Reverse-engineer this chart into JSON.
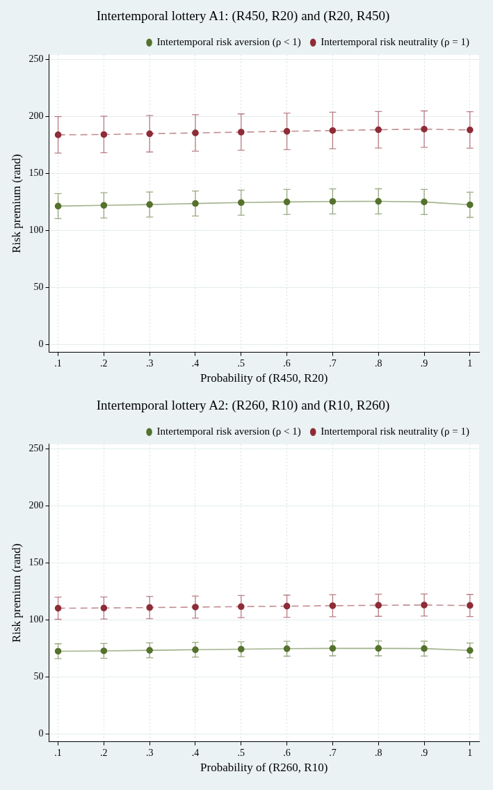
{
  "chart_data": [
    {
      "type": "line",
      "title": "Intertemporal lottery A1: (R450, R20) and (R20, R450)",
      "xlabel": "Probability of (R450, R20)",
      "ylabel": "Risk premium (rand)",
      "x": [
        0.1,
        0.2,
        0.3,
        0.4,
        0.5,
        0.6,
        0.7,
        0.8,
        0.9,
        1
      ],
      "series": [
        {
          "name": "Intertemporal risk aversion (ρ < 1)",
          "color": "#55722d",
          "line_style": "solid",
          "values": [
            121.3,
            122,
            122.7,
            123.6,
            124.4,
            125,
            125.4,
            125.5,
            125,
            122.5
          ],
          "errors": [
            11,
            11,
            11,
            11,
            11,
            11,
            11,
            11,
            11,
            11
          ]
        },
        {
          "name": "Intertemporal risk neutrality (ρ = 1)",
          "color": "#8e2c37",
          "line_style": "dashed",
          "values": [
            183.8,
            184.1,
            184.8,
            185.5,
            186.2,
            186.9,
            187.6,
            188.3,
            188.8,
            188.1
          ],
          "errors": [
            16,
            16,
            16,
            16,
            16,
            16,
            16,
            16,
            16,
            16
          ]
        }
      ],
      "xlim": [
        0.08,
        1.02
      ],
      "ylim": [
        -7,
        254
      ],
      "yticks": [
        0,
        50,
        100,
        150,
        200,
        250
      ],
      "xticks": [
        {
          "value": 0.1,
          "label": ".1"
        },
        {
          "value": 0.2,
          "label": ".2"
        },
        {
          "value": 0.3,
          "label": ".3"
        },
        {
          "value": 0.4,
          "label": ".4"
        },
        {
          "value": 0.5,
          "label": ".5"
        },
        {
          "value": 0.6,
          "label": ".6"
        },
        {
          "value": 0.7,
          "label": ".7"
        },
        {
          "value": 0.8,
          "label": ".8"
        },
        {
          "value": 0.9,
          "label": ".9"
        },
        1
      ],
      "grid": true,
      "legend": "top right",
      "marker": "circle"
    },
    {
      "type": "line",
      "title": "Intertemporal lottery A2: (R260, R10) and (R10, R260)",
      "xlabel": "Probability of (R260, R10)",
      "ylabel": "Risk premium (rand)",
      "x": [
        0.1,
        0.2,
        0.3,
        0.4,
        0.5,
        0.6,
        0.7,
        0.8,
        0.9,
        1
      ],
      "series": [
        {
          "name": "Intertemporal risk aversion (ρ < 1)",
          "color": "#55722d",
          "line_style": "solid",
          "values": [
            72.5,
            72.8,
            73.3,
            73.8,
            74.3,
            74.7,
            75,
            75,
            74.8,
            73.2
          ],
          "errors": [
            6.5,
            6.5,
            6.5,
            6.5,
            6.5,
            6.5,
            6.5,
            6.5,
            6.5,
            6.5
          ]
        },
        {
          "name": "Intertemporal risk neutrality (ρ = 1)",
          "color": "#8e2c37",
          "line_style": "dashed",
          "values": [
            110.2,
            110.4,
            110.8,
            111.2,
            111.6,
            112,
            112.4,
            112.8,
            113,
            112.6
          ],
          "errors": [
            9.7,
            9.7,
            9.7,
            9.7,
            9.7,
            9.7,
            9.7,
            9.7,
            9.7,
            9.7
          ]
        }
      ],
      "xlim": [
        0.08,
        1.02
      ],
      "ylim": [
        -7,
        254
      ],
      "yticks": [
        0,
        50,
        100,
        150,
        200,
        250
      ],
      "xticks": [
        {
          "value": 0.1,
          "label": ".1"
        },
        {
          "value": 0.2,
          "label": ".2"
        },
        {
          "value": 0.3,
          "label": ".3"
        },
        {
          "value": 0.4,
          "label": ".4"
        },
        {
          "value": 0.5,
          "label": ".5"
        },
        {
          "value": 0.6,
          "label": ".6"
        },
        {
          "value": 0.7,
          "label": ".7"
        },
        {
          "value": 0.8,
          "label": ".8"
        },
        {
          "value": 0.9,
          "label": ".9"
        },
        1
      ],
      "grid": true,
      "legend": "top right",
      "marker": "circle"
    }
  ]
}
